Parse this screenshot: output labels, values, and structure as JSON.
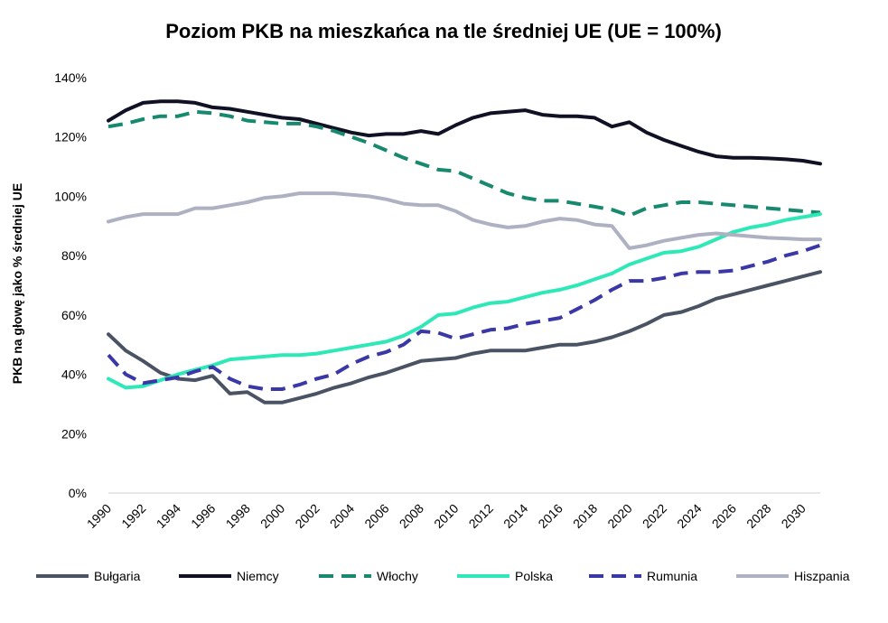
{
  "chart_data": {
    "type": "line",
    "title": "Poziom PKB na mieszkańca na tle średniej UE (UE = 100%)",
    "xlabel": "",
    "ylabel": "PKB na głowę jako % średniej UE",
    "ylim": [
      0,
      140
    ],
    "yticks": [
      "0%",
      "20%",
      "40%",
      "60%",
      "80%",
      "100%",
      "120%",
      "140%"
    ],
    "xticks": [
      "1990",
      "1992",
      "1994",
      "1996",
      "1998",
      "2000",
      "2002",
      "2004",
      "2006",
      "2008",
      "2010",
      "2012",
      "2014",
      "2016",
      "2018",
      "2020",
      "2022",
      "2024",
      "2026",
      "2028",
      "2030"
    ],
    "grid": false,
    "legend_position": "bottom",
    "x": [
      1990,
      1991,
      1992,
      1993,
      1994,
      1995,
      1996,
      1997,
      1998,
      1999,
      2000,
      2001,
      2002,
      2003,
      2004,
      2005,
      2006,
      2007,
      2008,
      2009,
      2010,
      2011,
      2012,
      2013,
      2014,
      2015,
      2016,
      2017,
      2018,
      2019,
      2020,
      2021,
      2022,
      2023,
      2024,
      2025,
      2026,
      2027,
      2028,
      2029,
      2030,
      2031
    ],
    "series": [
      {
        "name": "Bułgaria",
        "color": "#4a5363",
        "dash": false,
        "values": [
          53.5,
          48,
          44.5,
          40.5,
          38.5,
          38,
          39.5,
          33.5,
          34,
          30.5,
          30.5,
          32,
          33.5,
          35.5,
          37,
          39,
          40.5,
          42.5,
          44.5,
          45,
          45.5,
          47,
          48,
          48,
          48,
          49,
          50,
          50,
          51,
          52.5,
          54.5,
          57,
          60,
          61,
          63,
          65.5,
          67,
          68.5,
          70,
          71.5,
          73,
          74.5
        ]
      },
      {
        "name": "Niemcy",
        "color": "#111125",
        "dash": false,
        "values": [
          125.5,
          129,
          131.5,
          132,
          132,
          131.5,
          130,
          129.5,
          128.5,
          127.5,
          126.5,
          126,
          124.5,
          123,
          121.5,
          120.5,
          121,
          121,
          122,
          121,
          124,
          126.5,
          128,
          128.5,
          129,
          127.5,
          127,
          127,
          126.5,
          123.5,
          125,
          121.5,
          119,
          117,
          115,
          113.5,
          113,
          113,
          112.8,
          112.5,
          112,
          111
        ]
      },
      {
        "name": "Włochy",
        "color": "#17896e",
        "dash": true,
        "values": [
          123.5,
          124.5,
          126,
          127,
          127,
          128.5,
          128,
          127,
          125.5,
          125,
          124.5,
          124.5,
          123.5,
          122,
          120,
          118,
          115.5,
          113,
          111,
          109,
          108.5,
          106,
          103.5,
          101,
          99.5,
          98.5,
          98.5,
          97.5,
          96.5,
          95.5,
          93.5,
          96,
          97,
          98,
          98,
          97.5,
          97,
          96.5,
          96,
          95.5,
          95,
          94.5
        ]
      },
      {
        "name": "Polska",
        "color": "#2ee8b8",
        "dash": false,
        "values": [
          38.5,
          35.5,
          36,
          38,
          40,
          41.5,
          43,
          45,
          45.5,
          46,
          46.5,
          46.5,
          47,
          48,
          49,
          50,
          51,
          53,
          56,
          60,
          60.5,
          62.5,
          64,
          64.5,
          66,
          67.5,
          68.5,
          70,
          72,
          74,
          77,
          79,
          81,
          81.5,
          83,
          85.5,
          88,
          89.5,
          90.5,
          92,
          93,
          94
        ]
      },
      {
        "name": "Rumunia",
        "color": "#3a37a6",
        "dash": true,
        "values": [
          46.5,
          40,
          37,
          38,
          39,
          41,
          42.5,
          38.5,
          36,
          35,
          35,
          36.5,
          38.5,
          40,
          43.5,
          46,
          47.5,
          50,
          54.5,
          54,
          52,
          53.5,
          55,
          55.5,
          57,
          58,
          59,
          62,
          65,
          68.5,
          71.5,
          71.5,
          72.5,
          74,
          74.5,
          74.5,
          75,
          76.5,
          78,
          80,
          81.5,
          83.5
        ]
      },
      {
        "name": "Hiszpania",
        "color": "#aeb1c2",
        "dash": false,
        "values": [
          91.5,
          93,
          94,
          94,
          94,
          96,
          96,
          97,
          98,
          99.5,
          100,
          101,
          101,
          101,
          100.5,
          100,
          99,
          97.5,
          97,
          97,
          95,
          92,
          90.5,
          89.5,
          90,
          91.5,
          92.5,
          92,
          90.5,
          90,
          82.5,
          83.5,
          85,
          86,
          87,
          87.5,
          87,
          86.5,
          86,
          85.8,
          85.5,
          85.5
        ]
      }
    ]
  }
}
